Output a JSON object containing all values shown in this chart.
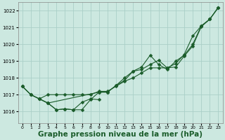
{
  "bg_color": "#cce8e0",
  "grid_color": "#aacfc8",
  "line_color": "#1a5c2a",
  "marker_color": "#1a5c2a",
  "xlabel": "Graphe pression niveau de la mer (hPa)",
  "xlabel_fontsize": 7.5,
  "ylim": [
    1015.3,
    1022.5
  ],
  "xlim": [
    -0.5,
    23.5
  ],
  "yticks": [
    1016,
    1017,
    1018,
    1019,
    1020,
    1021,
    1022
  ],
  "xticks": [
    0,
    1,
    2,
    3,
    4,
    5,
    6,
    7,
    8,
    9,
    10,
    11,
    12,
    13,
    14,
    15,
    16,
    17,
    18,
    19,
    20,
    21,
    22,
    23
  ],
  "series1_x": [
    0,
    1,
    2,
    3,
    4,
    5,
    6,
    7,
    8,
    9,
    10,
    11,
    12,
    13,
    14,
    15,
    16,
    17,
    18,
    19,
    20,
    21,
    22,
    23
  ],
  "series1_y": [
    1017.5,
    1017.0,
    1016.75,
    1017.0,
    1017.0,
    1017.0,
    1017.0,
    1017.0,
    1017.0,
    1017.2,
    1017.2,
    1017.5,
    1017.8,
    1018.0,
    1018.3,
    1018.6,
    1018.6,
    1018.6,
    1018.65,
    1019.3,
    1019.9,
    1021.05,
    1021.5,
    1022.2
  ],
  "series2_x": [
    0,
    1,
    2,
    3,
    9,
    10,
    11,
    12,
    13,
    14,
    15,
    16,
    17,
    18,
    19,
    20,
    21,
    22,
    23
  ],
  "series2_y": [
    1017.5,
    1017.0,
    1016.75,
    1016.5,
    1017.15,
    1017.15,
    1017.55,
    1017.85,
    1018.4,
    1018.5,
    1018.8,
    1019.05,
    1018.6,
    1018.85,
    1019.4,
    1020.5,
    1021.1,
    1021.5,
    1022.2
  ],
  "series3_x": [
    0,
    1,
    2,
    3,
    4,
    5,
    6,
    7,
    8,
    9,
    10,
    11,
    12,
    13,
    14,
    15,
    16,
    17,
    18,
    19,
    20,
    21,
    22,
    23
  ],
  "series3_y": [
    1017.5,
    1017.0,
    1016.75,
    1016.5,
    1016.1,
    1016.15,
    1016.1,
    1016.1,
    1016.7,
    1017.15,
    1017.15,
    1017.55,
    1018.0,
    1018.4,
    1018.65,
    1019.35,
    1018.8,
    1018.5,
    1019.0,
    1019.35,
    1020.0,
    1021.1,
    1021.5,
    1022.2
  ],
  "series4_x": [
    2,
    3,
    4,
    5,
    6,
    7,
    8,
    9
  ],
  "series4_y": [
    1016.75,
    1016.5,
    1016.1,
    1016.15,
    1016.1,
    1016.55,
    1016.75,
    1016.7
  ],
  "marker_size": 2.5
}
